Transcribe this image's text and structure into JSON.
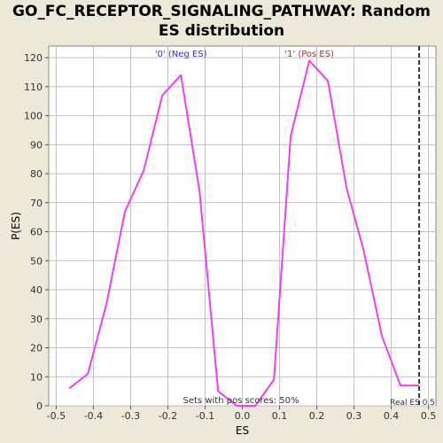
{
  "title_line1": "GO_FC_RECEPTOR_SIGNALING_PATHWAY: Random",
  "title_line2": "ES distribution",
  "colors": {
    "background": "#ece9d8",
    "plot_background": "#ffffff",
    "grid": "#c0c0c0",
    "curve": "#ee40ee",
    "neg_label": "#3333cc",
    "pos_label": "#cc2222",
    "real_es_line": "#333333"
  },
  "chart_data": {
    "type": "line",
    "xlabel": "ES",
    "ylabel": "P(ES)",
    "xlim": [
      -0.52,
      0.52
    ],
    "ylim": [
      0,
      124
    ],
    "xticks": [
      -0.5,
      -0.4,
      -0.3,
      -0.2,
      -0.1,
      0.0,
      0.1,
      0.2,
      0.3,
      0.4,
      0.5
    ],
    "xtick_labels": [
      "-0.5",
      "-0.4",
      "-0.3",
      "-0.2",
      "-0.1",
      "0.0",
      "0.1",
      "0.2",
      "0.3",
      "0.4",
      "0.5"
    ],
    "yticks": [
      0,
      10,
      20,
      30,
      40,
      50,
      60,
      70,
      80,
      90,
      100,
      110,
      120
    ],
    "ytick_labels": [
      "0",
      "10",
      "20",
      "30",
      "40",
      "50",
      "60",
      "70",
      "80",
      "90",
      "100",
      "110",
      "120"
    ],
    "grid": true,
    "series": [
      {
        "x": [
          -0.465,
          -0.415,
          -0.365,
          -0.315,
          -0.265,
          -0.215,
          -0.165,
          -0.115,
          -0.065,
          -0.015,
          0.035,
          0.085,
          0.13,
          0.18,
          0.23,
          0.28,
          0.325,
          0.375,
          0.425,
          0.475
        ],
        "y": [
          6,
          11,
          35,
          67,
          81,
          107,
          114,
          74,
          5,
          0,
          0,
          9,
          93,
          119,
          112,
          75,
          54,
          24,
          7,
          7
        ]
      }
    ],
    "real_es": 0.475,
    "annotations": {
      "neg_label": "'0' (Neg ES)",
      "neg_label_x": -0.165,
      "pos_label": "'1' (Pos ES)",
      "pos_label_x": 0.18,
      "sets_text": "Sets with pos scores: 50%",
      "real_es_text": "Real ES 0.5"
    }
  }
}
